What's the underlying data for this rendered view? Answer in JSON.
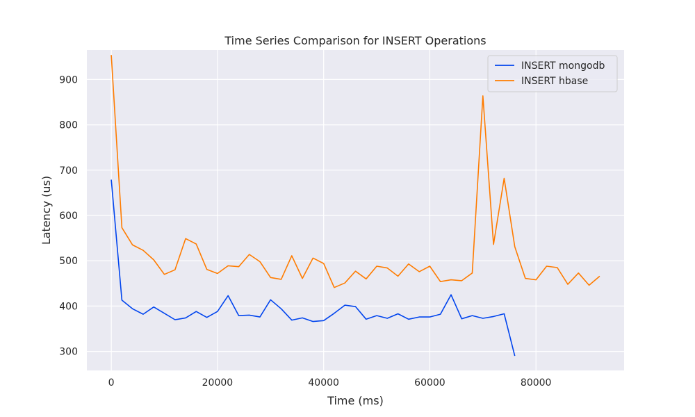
{
  "chart_data": {
    "type": "line",
    "title": "Time Series Comparison for INSERT Operations",
    "xlabel": "Time (ms)",
    "ylabel": "Latency (us)",
    "xlim": [
      -4600,
      96600
    ],
    "ylim": [
      258,
      965
    ],
    "xticks": [
      0,
      20000,
      40000,
      60000,
      80000
    ],
    "yticks": [
      300,
      400,
      500,
      600,
      700,
      800,
      900
    ],
    "grid": true,
    "legend": "top-right",
    "series": [
      {
        "name": "INSERT mongodb",
        "color": "#0044ee",
        "x": [
          0,
          2000,
          4000,
          6000,
          8000,
          10000,
          12000,
          14000,
          16000,
          18000,
          20000,
          22000,
          24000,
          26000,
          28000,
          30000,
          32000,
          34000,
          36000,
          38000,
          40000,
          42000,
          44000,
          46000,
          48000,
          50000,
          52000,
          54000,
          56000,
          58000,
          60000,
          62000,
          64000,
          66000,
          68000,
          70000,
          72000,
          74000,
          76000
        ],
        "values": [
          679,
          413,
          394,
          382,
          398,
          384,
          370,
          374,
          388,
          375,
          388,
          423,
          379,
          380,
          376,
          414,
          394,
          369,
          374,
          366,
          368,
          384,
          402,
          399,
          371,
          379,
          373,
          383,
          371,
          376,
          376,
          382,
          425,
          372,
          379,
          373,
          377,
          383,
          290
        ]
      },
      {
        "name": "INSERT hbase",
        "color": "#ff7c00",
        "x": [
          0,
          2000,
          4000,
          6000,
          8000,
          10000,
          12000,
          14000,
          16000,
          18000,
          20000,
          22000,
          24000,
          26000,
          28000,
          30000,
          32000,
          34000,
          36000,
          38000,
          40000,
          42000,
          44000,
          46000,
          48000,
          50000,
          52000,
          54000,
          56000,
          58000,
          60000,
          62000,
          64000,
          66000,
          68000,
          70000,
          72000,
          74000,
          76000,
          78000,
          80000,
          82000,
          84000,
          86000,
          88000,
          90000,
          92000
        ],
        "values": [
          954,
          573,
          535,
          523,
          502,
          470,
          480,
          549,
          537,
          481,
          472,
          489,
          487,
          514,
          498,
          463,
          459,
          511,
          461,
          506,
          494,
          441,
          451,
          477,
          460,
          488,
          484,
          466,
          493,
          476,
          488,
          454,
          458,
          456,
          473,
          864,
          536,
          682,
          531,
          461,
          458,
          488,
          485,
          448,
          473,
          446,
          466
        ]
      }
    ]
  }
}
